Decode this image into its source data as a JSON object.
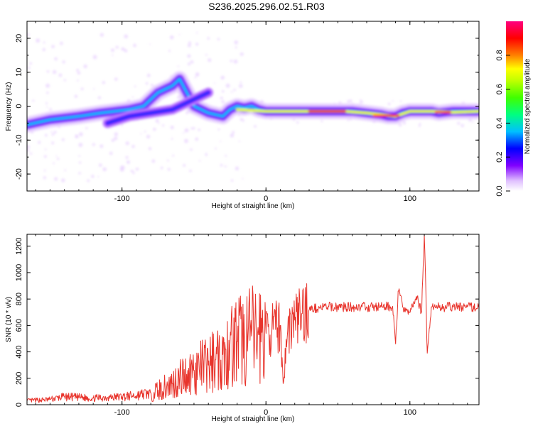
{
  "title": "S236.2025.296.02.51.R03",
  "chart_data": [
    {
      "type": "heatmap",
      "xlabel": "Height of straight line (km)",
      "ylabel": "Frequency (Hz)",
      "xlim": [
        -166,
        148
      ],
      "ylim": [
        -25,
        25
      ],
      "xticks": [
        -100,
        0,
        100
      ],
      "yticks": [
        20,
        10,
        0,
        -10,
        -20
      ],
      "colorbar": {
        "label": "Normalized spectral amplitude",
        "range": [
          0,
          1
        ],
        "ticks": [
          "0.0",
          "0.2",
          "0.4",
          "0.6",
          "0.8"
        ],
        "colors": [
          "#ffffff",
          "#c080ff",
          "#8000ff",
          "#0000ff",
          "#00c0ff",
          "#00ff80",
          "#80ff00",
          "#ffff00",
          "#ff8000",
          "#ff0000",
          "#ff0080"
        ]
      },
      "ridge": {
        "x": [
          -166,
          -150,
          -130,
          -115,
          -105,
          -95,
          -85,
          -80,
          -75,
          -70,
          -65,
          -60,
          -50,
          -40,
          -30,
          -25,
          -20,
          -15,
          -10,
          -5,
          0,
          10,
          20,
          30,
          40,
          50,
          60,
          70,
          80,
          85,
          90,
          95,
          100,
          105,
          110,
          115,
          120,
          130,
          140,
          148
        ],
        "y": [
          -5.5,
          -4,
          -3,
          -2,
          -1.5,
          -1,
          0,
          2,
          4,
          5,
          6,
          8,
          0,
          -2,
          -3,
          -1,
          0,
          -0.5,
          0,
          -1,
          -1.5,
          -1.5,
          -1.5,
          -1.5,
          -1.5,
          -1.5,
          -1.5,
          -2,
          -2.5,
          -3,
          -3,
          -2,
          -1.5,
          -1.5,
          -1.5,
          -1.5,
          -2,
          -1.5,
          -1.5,
          -1.5
        ]
      }
    },
    {
      "type": "line",
      "xlabel": "Height of straight line (km)",
      "ylabel": "SNR (10 * v/v)",
      "xlim": [
        -166,
        148
      ],
      "ylim": [
        0,
        1290
      ],
      "xticks": [
        -100,
        0,
        100
      ],
      "yticks": [
        0,
        200,
        400,
        600,
        800,
        1000,
        1200
      ],
      "color": "#e8342c",
      "x": [
        -166,
        -150,
        -140,
        -130,
        -120,
        -110,
        -100,
        -90,
        -80,
        -75,
        -70,
        -65,
        -60,
        -55,
        -50,
        -45,
        -40,
        -35,
        -30,
        -28,
        -25,
        -20,
        -15,
        -10,
        -5,
        0,
        5,
        10,
        12,
        15,
        20,
        25,
        30,
        40,
        50,
        60,
        70,
        80,
        88,
        90,
        92,
        95,
        100,
        105,
        108,
        110,
        111,
        112,
        115,
        120,
        130,
        140,
        148
      ],
      "y": [
        30,
        40,
        60,
        55,
        50,
        55,
        60,
        70,
        90,
        110,
        130,
        160,
        200,
        230,
        260,
        280,
        300,
        340,
        380,
        420,
        450,
        480,
        500,
        520,
        530,
        540,
        570,
        600,
        160,
        560,
        640,
        690,
        720,
        740,
        740,
        740,
        740,
        740,
        745,
        460,
        860,
        740,
        700,
        820,
        700,
        1290,
        900,
        390,
        740,
        740,
        740,
        740,
        735
      ]
    }
  ]
}
